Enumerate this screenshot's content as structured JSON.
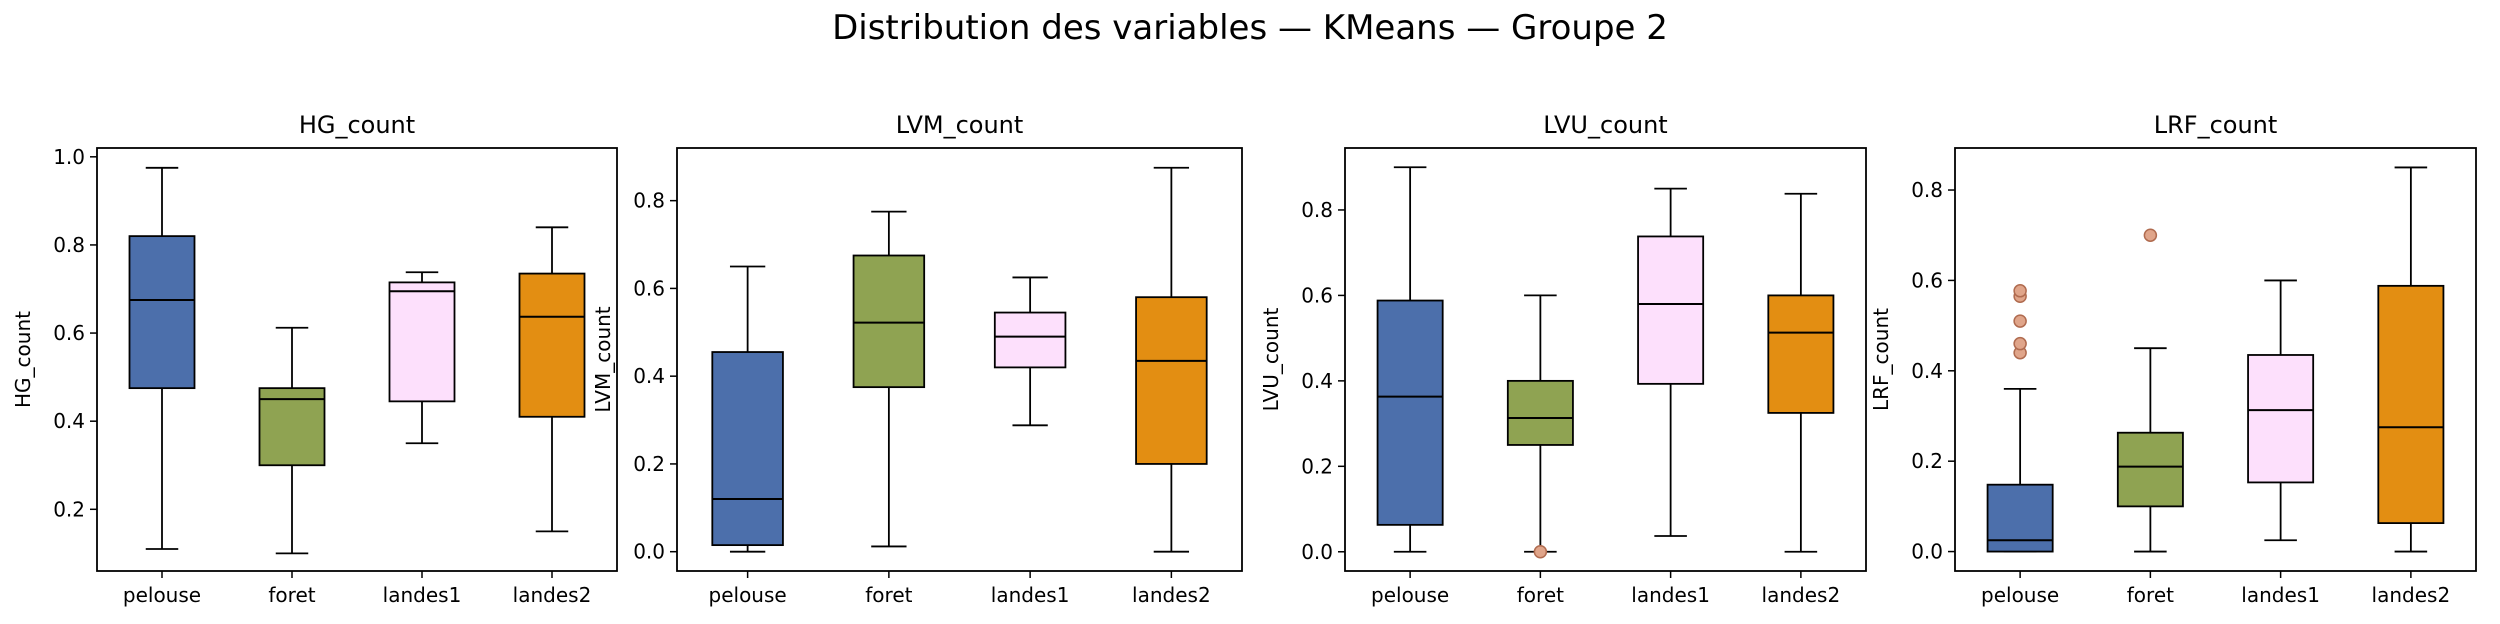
{
  "figure": {
    "title": "Distribution des variables — KMeans — Groupe 2"
  },
  "colors": {
    "pelouse": "#4c6fab",
    "foret": "#8fa352",
    "landes1": "#fde0fc",
    "landes2": "#e38e12",
    "outlier_fill": "#e0a58a",
    "outlier_edge": "#b06b4f",
    "median": "#000000"
  },
  "chart_data": [
    {
      "type": "box",
      "title": "HG_count",
      "xlabel": "",
      "ylabel": "HG_count",
      "categories": [
        "pelouse",
        "foret",
        "landes1",
        "landes2"
      ],
      "ylim": [
        0.06,
        1.02
      ],
      "yticks": [
        0.2,
        0.4,
        0.6,
        0.8,
        1.0
      ],
      "ytick_labels": [
        "0.2",
        "0.4",
        "0.6",
        "0.8",
        "1.0"
      ],
      "boxes": [
        {
          "min": 0.11,
          "q1": 0.475,
          "median": 0.675,
          "q3": 0.82,
          "max": 0.975,
          "outliers": []
        },
        {
          "min": 0.1,
          "q1": 0.3,
          "median": 0.45,
          "q3": 0.475,
          "max": 0.612,
          "outliers": []
        },
        {
          "min": 0.35,
          "q1": 0.445,
          "median": 0.695,
          "q3": 0.715,
          "max": 0.738,
          "outliers": []
        },
        {
          "min": 0.15,
          "q1": 0.41,
          "median": 0.637,
          "q3": 0.735,
          "max": 0.84,
          "outliers": []
        }
      ]
    },
    {
      "type": "box",
      "title": "LVM_count",
      "xlabel": "",
      "ylabel": "LVM_count",
      "categories": [
        "pelouse",
        "foret",
        "landes1",
        "landes2"
      ],
      "ylim": [
        -0.044,
        0.92
      ],
      "yticks": [
        0.0,
        0.2,
        0.4,
        0.6,
        0.8
      ],
      "ytick_labels": [
        "0.0",
        "0.2",
        "0.4",
        "0.6",
        "0.8"
      ],
      "boxes": [
        {
          "min": 0.0,
          "q1": 0.015,
          "median": 0.12,
          "q3": 0.455,
          "max": 0.65,
          "outliers": []
        },
        {
          "min": 0.012,
          "q1": 0.375,
          "median": 0.522,
          "q3": 0.675,
          "max": 0.775,
          "outliers": []
        },
        {
          "min": 0.288,
          "q1": 0.42,
          "median": 0.49,
          "q3": 0.545,
          "max": 0.625,
          "outliers": []
        },
        {
          "min": 0.0,
          "q1": 0.2,
          "median": 0.435,
          "q3": 0.58,
          "max": 0.875,
          "outliers": []
        }
      ]
    },
    {
      "type": "box",
      "title": "LVU_count",
      "xlabel": "",
      "ylabel": "LVU_count",
      "categories": [
        "pelouse",
        "foret",
        "landes1",
        "landes2"
      ],
      "ylim": [
        -0.045,
        0.945
      ],
      "yticks": [
        0.0,
        0.2,
        0.4,
        0.6,
        0.8
      ],
      "ytick_labels": [
        "0.0",
        "0.2",
        "0.4",
        "0.6",
        "0.8"
      ],
      "boxes": [
        {
          "min": 0.0,
          "q1": 0.063,
          "median": 0.363,
          "q3": 0.588,
          "max": 0.9,
          "outliers": []
        },
        {
          "min": 0.0,
          "q1": 0.25,
          "median": 0.313,
          "q3": 0.4,
          "max": 0.6,
          "outliers": [
            0.0
          ]
        },
        {
          "min": 0.037,
          "q1": 0.393,
          "median": 0.58,
          "q3": 0.738,
          "max": 0.85,
          "outliers": []
        },
        {
          "min": 0.0,
          "q1": 0.325,
          "median": 0.513,
          "q3": 0.6,
          "max": 0.838,
          "outliers": []
        }
      ]
    },
    {
      "type": "box",
      "title": "LRF_count",
      "xlabel": "",
      "ylabel": "LRF_count",
      "categories": [
        "pelouse",
        "foret",
        "landes1",
        "landes2"
      ],
      "ylim": [
        -0.043,
        0.893
      ],
      "yticks": [
        0.0,
        0.2,
        0.4,
        0.6,
        0.8
      ],
      "ytick_labels": [
        "0.0",
        "0.2",
        "0.4",
        "0.6",
        "0.8"
      ],
      "boxes": [
        {
          "min": 0.0,
          "q1": 0.0,
          "median": 0.025,
          "q3": 0.148,
          "max": 0.36,
          "outliers": [
            0.44,
            0.46,
            0.51,
            0.565,
            0.577
          ]
        },
        {
          "min": 0.0,
          "q1": 0.1,
          "median": 0.188,
          "q3": 0.263,
          "max": 0.45,
          "outliers": [
            0.7
          ]
        },
        {
          "min": 0.025,
          "q1": 0.153,
          "median": 0.313,
          "q3": 0.435,
          "max": 0.6,
          "outliers": []
        },
        {
          "min": 0.0,
          "q1": 0.063,
          "median": 0.275,
          "q3": 0.588,
          "max": 0.85,
          "outliers": []
        }
      ]
    }
  ]
}
